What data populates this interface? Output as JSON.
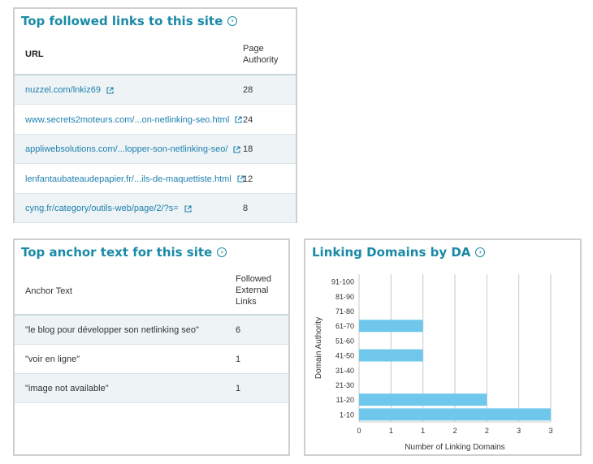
{
  "links_card": {
    "title": "Top followed links to this site",
    "col_url": "URL",
    "col_pa_line1": "Page",
    "col_pa_line2": "Authority",
    "rows": [
      {
        "url": "nuzzel.com/lnkiz69",
        "pa": "28"
      },
      {
        "url": "www.secrets2moteurs.com/...on-netlinking-seo.html",
        "pa": "24"
      },
      {
        "url": "appliwebsolutions.com/...lopper-son-netlinking-seo/",
        "pa": "18"
      },
      {
        "url": "lenfantaubateaudepapier.fr/...ils-de-maquettiste.html",
        "pa": "12"
      },
      {
        "url": "cyng.fr/category/outils-web/page/2/?s=",
        "pa": "8"
      }
    ]
  },
  "anchor_card": {
    "title": "Top anchor text for this site",
    "col_anchor": "Anchor Text",
    "col_links_line1": "Followed",
    "col_links_line2": "External",
    "col_links_line3": "Links",
    "rows": [
      {
        "text": "\"le blog pour développer son netlinking seo\"",
        "count": "6"
      },
      {
        "text": "\"voir en ligne\"",
        "count": "1"
      },
      {
        "text": "\"image not available\"",
        "count": "1"
      }
    ]
  },
  "da_card": {
    "title": "Linking Domains by DA"
  },
  "chart_data": {
    "type": "bar",
    "orientation": "horizontal",
    "title": "Linking Domains by DA",
    "categories": [
      "91-100",
      "81-90",
      "71-80",
      "61-70",
      "51-60",
      "41-50",
      "31-40",
      "21-30",
      "11-20",
      "1-10"
    ],
    "values": [
      0,
      0,
      0,
      1,
      0,
      1,
      0,
      0,
      2,
      3
    ],
    "xlabel": "Number of Linking Domains",
    "ylabel": "Domain Authority",
    "xticks": [
      "0",
      "1",
      "1",
      "2",
      "2",
      "3",
      "3"
    ],
    "xlim": [
      0,
      3
    ],
    "grid": true,
    "bar_color": "#6fc8ec"
  },
  "colors": {
    "accent": "#1a8aa6",
    "link": "#1e7fae",
    "row_alt": "#eef4f6",
    "bar": "#6fc8ec"
  }
}
